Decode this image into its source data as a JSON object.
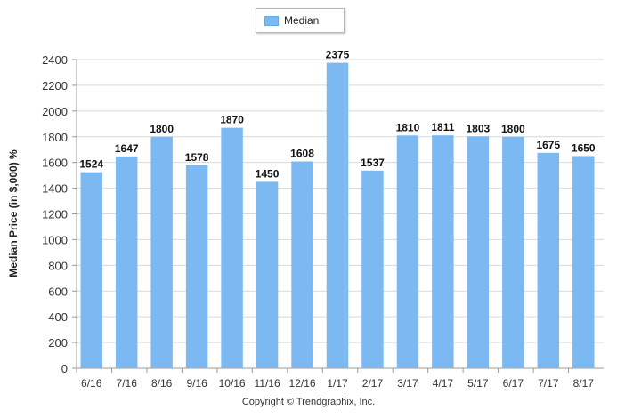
{
  "legend": {
    "label": "Median",
    "color": "#7cb9f2"
  },
  "footer": {
    "copyright": "Copyright © Trendgraphix, Inc."
  },
  "chart_data": {
    "type": "bar",
    "title": "",
    "xlabel": "",
    "ylabel": "Median Price (in $,000) %",
    "ylim": [
      0,
      2400
    ],
    "yticks": [
      0,
      200,
      400,
      600,
      800,
      1000,
      1200,
      1400,
      1600,
      1800,
      2000,
      2200,
      2400
    ],
    "grid": true,
    "legend_position": "top-center",
    "categories": [
      "6/16",
      "7/16",
      "8/16",
      "9/16",
      "10/16",
      "11/16",
      "12/16",
      "1/17",
      "2/17",
      "3/17",
      "4/17",
      "5/17",
      "6/17",
      "7/17",
      "8/17"
    ],
    "series": [
      {
        "name": "Median",
        "values": [
          1524,
          1647,
          1800,
          1578,
          1870,
          1450,
          1608,
          2375,
          1537,
          1810,
          1811,
          1803,
          1800,
          1675,
          1650
        ]
      }
    ]
  }
}
